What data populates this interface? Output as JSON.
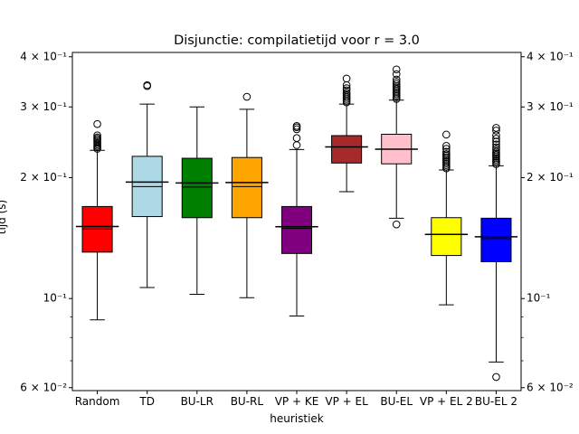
{
  "chart_data": {
    "type": "box",
    "title": "Disjunctie: compilatietijd voor r = 3.0",
    "xlabel": "heuristiek",
    "ylabel": "tijd (s)",
    "yscale": "log",
    "ylim": [
      0.059,
      0.41
    ],
    "yticks_major": [
      {
        "value": 0.06,
        "label": "6 × 10⁻²"
      },
      {
        "value": 0.1,
        "label": "10⁻¹"
      },
      {
        "value": 0.2,
        "label": "2 × 10⁻¹"
      },
      {
        "value": 0.3,
        "label": "3 × 10⁻¹"
      },
      {
        "value": 0.4,
        "label": "4 × 10⁻¹"
      }
    ],
    "yticks_minor": [
      0.07,
      0.08,
      0.09
    ],
    "mirror_right_axis": true,
    "categories": [
      "Random",
      "TD",
      "BU-LR",
      "BU-RL",
      "VP + KE",
      "VP + EL",
      "BU-EL",
      "VP + EL 2",
      "BU-EL 2"
    ],
    "boxes": [
      {
        "name": "Random",
        "color": "#ff0000",
        "whislo": 0.0885,
        "q1": 0.1305,
        "median": 0.149,
        "mean": 0.1512,
        "q3": 0.1695,
        "whishi": 0.234,
        "fliers": [
          0.236,
          0.238,
          0.24,
          0.242,
          0.244,
          0.246,
          0.248,
          0.25,
          0.252,
          0.255,
          0.272
        ]
      },
      {
        "name": "TD",
        "color": "#add8e6",
        "whislo": 0.1065,
        "q1": 0.16,
        "median": 0.19,
        "mean": 0.195,
        "q3": 0.226,
        "whishi": 0.305,
        "fliers": [
          0.338,
          0.34
        ]
      },
      {
        "name": "BU-LR",
        "color": "#008000",
        "whislo": 0.1025,
        "q1": 0.159,
        "median": 0.1895,
        "mean": 0.194,
        "q3": 0.2235,
        "whishi": 0.3,
        "fliers": []
      },
      {
        "name": "BU-RL",
        "color": "#ffa500",
        "whislo": 0.1005,
        "q1": 0.159,
        "median": 0.19,
        "mean": 0.1945,
        "q3": 0.2245,
        "whishi": 0.296,
        "fliers": [
          0.318
        ]
      },
      {
        "name": "VP + KE",
        "color": "#800080",
        "whislo": 0.0905,
        "q1": 0.1295,
        "median": 0.1495,
        "mean": 0.151,
        "q3": 0.1695,
        "whishi": 0.235,
        "fliers": [
          0.241,
          0.251,
          0.264,
          0.267,
          0.269
        ]
      },
      {
        "name": "VP + EL",
        "color": "#a52a2a",
        "whislo": 0.1845,
        "q1": 0.2175,
        "median": 0.2385,
        "mean": 0.2385,
        "q3": 0.2545,
        "whishi": 0.305,
        "fliers": [
          0.308,
          0.311,
          0.314,
          0.317,
          0.32,
          0.323,
          0.326,
          0.33,
          0.334,
          0.34,
          0.353
        ]
      },
      {
        "name": "BU-EL",
        "color": "#ffc0cb",
        "whislo": 0.1585,
        "q1": 0.2165,
        "median": 0.2355,
        "mean": 0.2355,
        "q3": 0.2565,
        "whishi": 0.312,
        "fliers": [
          0.153,
          0.314,
          0.317,
          0.32,
          0.323,
          0.326,
          0.329,
          0.332,
          0.335,
          0.338,
          0.342,
          0.346,
          0.351,
          0.362,
          0.372
        ]
      },
      {
        "name": "VP + EL 2",
        "color": "#ffff00",
        "whislo": 0.0965,
        "q1": 0.128,
        "median": 0.1445,
        "mean": 0.1445,
        "q3": 0.159,
        "whishi": 0.209,
        "fliers": [
          0.211,
          0.213,
          0.215,
          0.217,
          0.219,
          0.221,
          0.223,
          0.225,
          0.227,
          0.229,
          0.232,
          0.236,
          0.24,
          0.256
        ]
      },
      {
        "name": "BU-EL 2",
        "color": "#0000ff",
        "whislo": 0.0695,
        "q1": 0.1235,
        "median": 0.141,
        "mean": 0.1425,
        "q3": 0.1585,
        "whishi": 0.214,
        "fliers": [
          0.0638,
          0.216,
          0.218,
          0.22,
          0.222,
          0.224,
          0.226,
          0.228,
          0.23,
          0.232,
          0.235,
          0.238,
          0.242,
          0.246,
          0.25,
          0.255,
          0.262,
          0.266
        ]
      }
    ]
  }
}
